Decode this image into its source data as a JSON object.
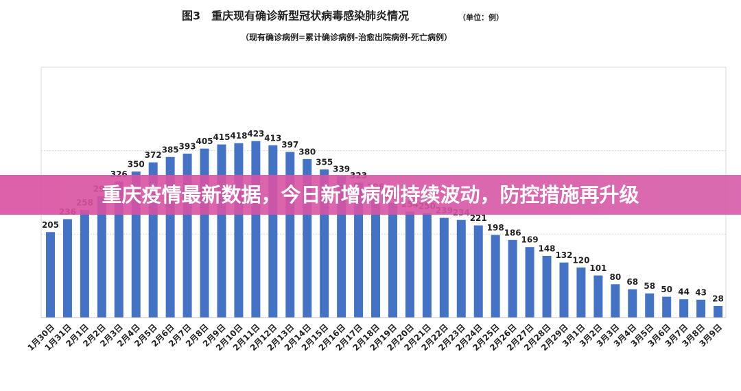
{
  "chart_data": {
    "type": "bar",
    "title": "图3　重庆现有确诊新型冠状病毒感染肺炎情况",
    "unit": "（单位：例）",
    "subtitle": "（现有确诊病例=累计确诊病例-治愈出院病例-死亡病例）",
    "categories": [
      "1月30日",
      "1月31日",
      "2月1日",
      "2月2日",
      "2月3日",
      "2月4日",
      "2月5日",
      "2月6日",
      "2月7日",
      "2月8日",
      "2月9日",
      "2月10日",
      "2月11日",
      "2月12日",
      "2月13日",
      "2月14日",
      "2月15日",
      "2月16日",
      "2月17日",
      "2月18日",
      "2月19日",
      "2月20日",
      "2月21日",
      "2月22日",
      "2月23日",
      "2月24日",
      "2月25日",
      "2月26日",
      "2月27日",
      "2月28日",
      "2月29日",
      "3月1日",
      "3月2日",
      "3月3日",
      "3月4日",
      "3月5日",
      "3月6日",
      "3月7日",
      "3月8日",
      "3月9日"
    ],
    "values": [
      205,
      236,
      258,
      291,
      326,
      350,
      372,
      385,
      393,
      405,
      415,
      418,
      423,
      413,
      397,
      380,
      355,
      339,
      323,
      296,
      275,
      254,
      250,
      239,
      234,
      221,
      198,
      186,
      169,
      148,
      132,
      120,
      101,
      80,
      68,
      58,
      50,
      44,
      43,
      28
    ],
    "color": "#4472c4",
    "ylim": [
      0,
      600
    ],
    "yticks": [
      0,
      200,
      400,
      600
    ],
    "grid": true
  },
  "banner": {
    "text": "重庆疫情最新数据，今日新增病例持续波动，防控措施再升级"
  }
}
